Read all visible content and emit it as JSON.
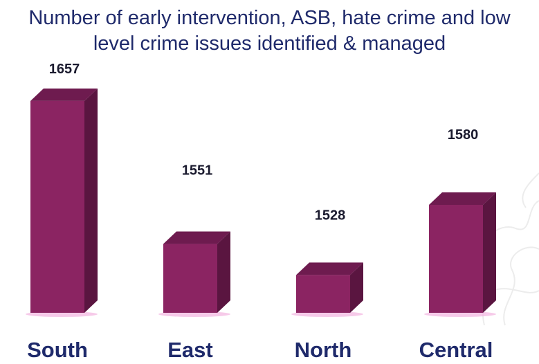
{
  "chart_data": {
    "type": "bar",
    "title": "Number of early intervention, ASB, hate crime and low level crime issues identified & managed",
    "title_lines": [
      "Number of early intervention, ASB, hate crime and low",
      "level crime issues identified & managed"
    ],
    "categories": [
      "South",
      "East",
      "North",
      "Central"
    ],
    "values": [
      1657,
      1551,
      1528,
      1580
    ],
    "xlabel": "",
    "ylabel": "",
    "ylim": [
      1500,
      1660
    ],
    "grid": false,
    "legend": "none",
    "bar_style": "3d"
  },
  "colors": {
    "bar_front": "#8b2462",
    "bar_side": "#5a1540",
    "bar_top": "#6e1b4f",
    "title": "#1f2a6b",
    "value_label": "#1a1a2e",
    "category_label": "#1f2a6b",
    "floor_glow": "#f2b3e0"
  }
}
